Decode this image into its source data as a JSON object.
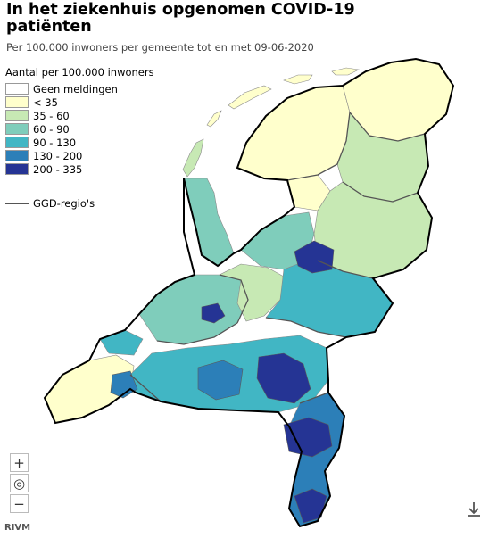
{
  "title": "In het ziekenhuis opgenomen COVID-19 patiënten",
  "subtitle": "Per 100.000 inwoners per gemeente tot en met 09-06-2020",
  "legend": {
    "title": "Aantal per 100.000 inwoners",
    "items": [
      {
        "label": "Geen meldingen",
        "color": "#ffffff"
      },
      {
        "label": "< 35",
        "color": "#ffffcc"
      },
      {
        "label": "35 - 60",
        "color": "#c7e9b4"
      },
      {
        "label": "60 - 90",
        "color": "#7fcdbb"
      },
      {
        "label": "90 - 130",
        "color": "#41b6c4"
      },
      {
        "label": "130 - 200",
        "color": "#2c7fb8"
      },
      {
        "label": "200 - 335",
        "color": "#253494"
      }
    ],
    "ggd_label": "GGD-regio's"
  },
  "controls": {
    "zoom_in": "+",
    "reset": "◎",
    "zoom_out": "−"
  },
  "source": "RIVM",
  "icons": {
    "download": "download-icon"
  }
}
